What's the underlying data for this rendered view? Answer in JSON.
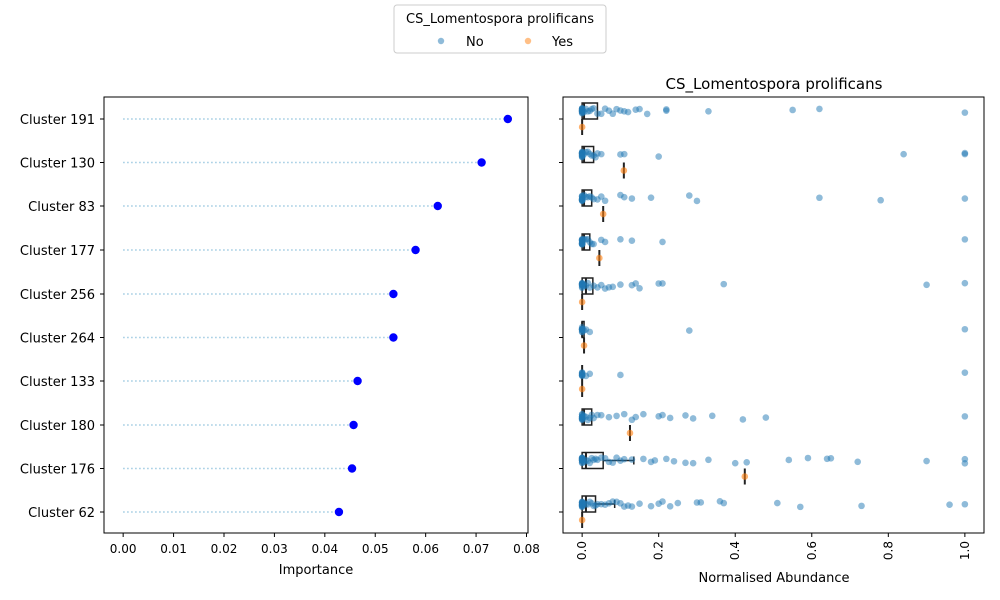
{
  "legend": {
    "title": "CS_Lomentospora prolificans",
    "entries": [
      {
        "label": "No",
        "color": "#1f77b4"
      },
      {
        "label": "Yes",
        "color": "#ff7f0e"
      }
    ],
    "placement": "top-center"
  },
  "chart_data": [
    {
      "type": "scatter",
      "title": "",
      "xlabel": "Importance",
      "ylabel": "",
      "xlim": [
        -0.0038,
        0.0803
      ],
      "xticks": [
        "0.00",
        "0.01",
        "0.02",
        "0.03",
        "0.04",
        "0.05",
        "0.06",
        "0.07",
        "0.08"
      ],
      "categories": [
        "Cluster 191",
        "Cluster 130",
        "Cluster 83",
        "Cluster 177",
        "Cluster 256",
        "Cluster 264",
        "Cluster 133",
        "Cluster 180",
        "Cluster 176",
        "Cluster 62"
      ],
      "values": [
        0.0763,
        0.0711,
        0.0624,
        0.058,
        0.0536,
        0.0536,
        0.0465,
        0.0457,
        0.0454,
        0.0428
      ],
      "marker_color": "#0000ff",
      "stem_color": "#9ecae1",
      "grid": false
    },
    {
      "type": "scatter",
      "title": "CS_Lomentospora prolificans",
      "xlabel": "Normalised Abundance",
      "ylabel": "",
      "xlim": [
        -0.05,
        1.05
      ],
      "xticks": [
        "0.0",
        "0.2",
        "0.4",
        "0.6",
        "0.8",
        "1.0"
      ],
      "categories": [
        "Cluster 191",
        "Cluster 130",
        "Cluster 83",
        "Cluster 177",
        "Cluster 256",
        "Cluster 264",
        "Cluster 133",
        "Cluster 180",
        "Cluster 176",
        "Cluster 62"
      ],
      "series": [
        {
          "name": "No",
          "color": "#1f77b4",
          "values": [
            [
              0,
              0,
              0,
              0,
              0,
              0,
              0,
              0,
              0,
              0,
              0,
              0,
              0,
              0,
              0,
              0,
              0.005,
              0.01,
              0.015,
              0.02,
              0.025,
              0.03,
              0.04,
              0.05,
              0.06,
              0.07,
              0.08,
              0.09,
              0.1,
              0.11,
              0.12,
              0.14,
              0.15,
              0.17,
              0.22,
              0.22,
              0.33,
              0.55,
              0.62,
              1.0
            ],
            [
              0,
              0,
              0,
              0,
              0,
              0,
              0,
              0,
              0,
              0,
              0,
              0,
              0,
              0,
              0.005,
              0.01,
              0.015,
              0.02,
              0.025,
              0.03,
              0.035,
              0.04,
              0.05,
              0.1,
              0.11,
              0.2,
              0.84,
              1.0,
              1.0
            ],
            [
              0,
              0,
              0,
              0,
              0,
              0,
              0,
              0,
              0,
              0,
              0,
              0,
              0.005,
              0.01,
              0.015,
              0.02,
              0.025,
              0.03,
              0.04,
              0.05,
              0.06,
              0.1,
              0.11,
              0.13,
              0.18,
              0.28,
              0.3,
              0.62,
              0.78,
              1.0
            ],
            [
              0,
              0,
              0,
              0,
              0,
              0,
              0,
              0,
              0,
              0,
              0,
              0,
              0,
              0,
              0.005,
              0.01,
              0.015,
              0.02,
              0.025,
              0.03,
              0.05,
              0.06,
              0.1,
              0.13,
              0.21,
              1.0
            ],
            [
              0,
              0,
              0,
              0,
              0,
              0,
              0,
              0,
              0,
              0,
              0,
              0.005,
              0.01,
              0.015,
              0.02,
              0.03,
              0.04,
              0.05,
              0.06,
              0.07,
              0.08,
              0.1,
              0.13,
              0.14,
              0.15,
              0.2,
              0.21,
              0.37,
              0.9,
              1.0
            ],
            [
              0,
              0,
              0,
              0,
              0,
              0,
              0,
              0,
              0,
              0.005,
              0.01,
              0.02,
              0.28,
              1.0
            ],
            [
              0,
              0,
              0,
              0,
              0,
              0,
              0,
              0,
              0.01,
              0.02,
              0.1,
              1.0
            ],
            [
              0,
              0,
              0,
              0,
              0,
              0,
              0,
              0,
              0,
              0,
              0,
              0,
              0.005,
              0.01,
              0.015,
              0.02,
              0.025,
              0.03,
              0.04,
              0.05,
              0.07,
              0.09,
              0.11,
              0.13,
              0.14,
              0.16,
              0.2,
              0.21,
              0.23,
              0.27,
              0.29,
              0.34,
              0.42,
              0.48,
              1.0
            ],
            [
              0,
              0,
              0,
              0,
              0,
              0,
              0,
              0,
              0,
              0,
              0,
              0,
              0,
              0,
              0,
              0.005,
              0.01,
              0.015,
              0.02,
              0.025,
              0.03,
              0.035,
              0.04,
              0.05,
              0.06,
              0.07,
              0.08,
              0.09,
              0.1,
              0.11,
              0.13,
              0.16,
              0.18,
              0.19,
              0.22,
              0.24,
              0.27,
              0.29,
              0.33,
              0.4,
              0.43,
              0.54,
              0.59,
              0.64,
              0.65,
              0.72,
              0.9,
              1.0,
              1.0
            ],
            [
              0,
              0,
              0,
              0,
              0,
              0,
              0,
              0,
              0,
              0,
              0,
              0,
              0,
              0,
              0.005,
              0.01,
              0.015,
              0.02,
              0.025,
              0.03,
              0.035,
              0.04,
              0.05,
              0.06,
              0.07,
              0.08,
              0.09,
              0.1,
              0.11,
              0.12,
              0.13,
              0.15,
              0.18,
              0.2,
              0.21,
              0.23,
              0.25,
              0.3,
              0.31,
              0.36,
              0.37,
              0.51,
              0.57,
              0.73,
              0.96,
              1.0
            ]
          ]
        },
        {
          "name": "Yes",
          "color": "#ff7f0e",
          "values": [
            [
              0.0
            ],
            [
              0.109
            ],
            [
              0.055
            ],
            [
              0.045
            ],
            [
              0.0
            ],
            [
              0.005
            ],
            [
              0.0
            ],
            [
              0.125
            ],
            [
              0.425
            ],
            [
              0.0
            ]
          ]
        }
      ],
      "boxes_no": [
        [
          0.0,
          0.0,
          0.005,
          0.04
        ],
        [
          0.0,
          0.0,
          0.005,
          0.03
        ],
        [
          0.0,
          0.0,
          0.005,
          0.025
        ],
        [
          0.0,
          0.0,
          0.005,
          0.02
        ],
        [
          0.0,
          0.0,
          0.01,
          0.028
        ],
        [
          0.0,
          0.0,
          0.0,
          0.005
        ],
        [
          0.0,
          0.0,
          0.0,
          0.0
        ],
        [
          0.0,
          0.0,
          0.005,
          0.025
        ],
        [
          0.0,
          0.0,
          0.01,
          0.055,
          0.135
        ],
        [
          0.0,
          0.0,
          0.01,
          0.035,
          0.085
        ]
      ],
      "grid": false
    }
  ]
}
